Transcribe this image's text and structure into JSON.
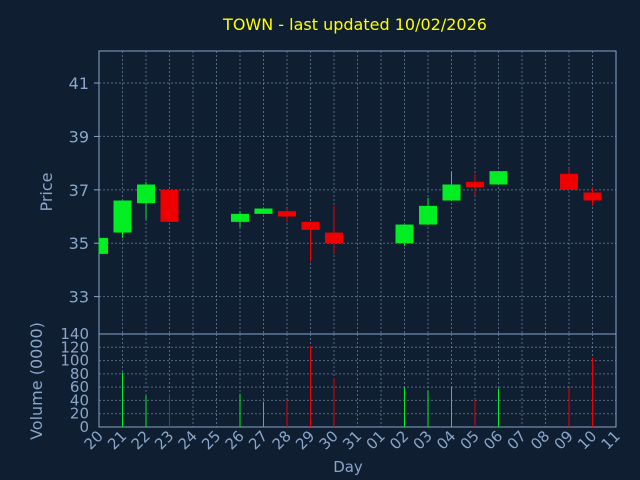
{
  "chart_data": {
    "type": "candlestick",
    "title": "TOWN - last updated 10/02/2026",
    "colors": {
      "background": "#0f1e30",
      "plot_border": "#8aa6c8",
      "grid": "#8aa6c8",
      "title": "#ffff00",
      "axis_text": "#8aa6c8",
      "up": "#00ee22",
      "down": "#ee0000"
    },
    "x_tick_labels": [
      "20",
      "21",
      "22",
      "23",
      "24",
      "25",
      "26",
      "27",
      "28",
      "29",
      "30",
      "31",
      "01",
      "02",
      "03",
      "04",
      "05",
      "06",
      "07",
      "08",
      "09",
      "10",
      "11"
    ],
    "xlabel": "Day",
    "price_panel": {
      "ylabel": "Price",
      "yticks": [
        33,
        35,
        37,
        39,
        41
      ],
      "ylim": [
        31.6,
        42.2
      ],
      "grid": true
    },
    "volume_panel": {
      "ylabel": "Volume (0000)",
      "yticks": [
        0,
        20,
        40,
        60,
        80,
        100,
        120,
        140
      ],
      "ylim": [
        0,
        140
      ],
      "grid": true
    },
    "candles": [
      {
        "day": "20",
        "open": 34.6,
        "high": 35.2,
        "low": 34.6,
        "close": 35.2,
        "volume": 0
      },
      {
        "day": "21",
        "open": 35.4,
        "high": 36.6,
        "low": 35.2,
        "close": 36.6,
        "volume": 82
      },
      {
        "day": "22",
        "open": 36.5,
        "high": 37.3,
        "low": 35.9,
        "close": 37.2,
        "volume": 47
      },
      {
        "day": "23",
        "open": 37.0,
        "high": 37.0,
        "low": 35.8,
        "close": 35.8,
        "volume": 50
      },
      {
        "day": "26",
        "open": 35.8,
        "high": 36.2,
        "low": 35.6,
        "close": 36.1,
        "volume": 50
      },
      {
        "day": "27",
        "open": 36.1,
        "high": 36.3,
        "low": 36.1,
        "close": 36.3,
        "volume": 38
      },
      {
        "day": "28",
        "open": 36.2,
        "high": 36.3,
        "low": 35.8,
        "close": 36.0,
        "volume": 40
      },
      {
        "day": "29",
        "open": 35.8,
        "high": 35.8,
        "low": 34.3,
        "close": 35.5,
        "volume": 122
      },
      {
        "day": "30",
        "open": 35.4,
        "high": 36.4,
        "low": 34.6,
        "close": 35.0,
        "volume": 74
      },
      {
        "day": "02",
        "open": 35.0,
        "high": 35.7,
        "low": 34.9,
        "close": 35.7,
        "volume": 60
      },
      {
        "day": "03",
        "open": 35.7,
        "high": 36.7,
        "low": 35.7,
        "close": 36.4,
        "volume": 55
      },
      {
        "day": "04",
        "open": 36.6,
        "high": 37.7,
        "low": 36.6,
        "close": 37.2,
        "volume": 60
      },
      {
        "day": "05",
        "open": 37.3,
        "high": 37.6,
        "low": 36.8,
        "close": 37.1,
        "volume": 42
      },
      {
        "day": "06",
        "open": 37.2,
        "high": 37.7,
        "low": 37.2,
        "close": 37.7,
        "volume": 58
      },
      {
        "day": "09",
        "open": 37.6,
        "high": 37.8,
        "low": 37.0,
        "close": 37.0,
        "volume": 58
      },
      {
        "day": "10",
        "open": 36.9,
        "high": 37.1,
        "low": 36.4,
        "close": 36.6,
        "volume": 104
      }
    ]
  }
}
